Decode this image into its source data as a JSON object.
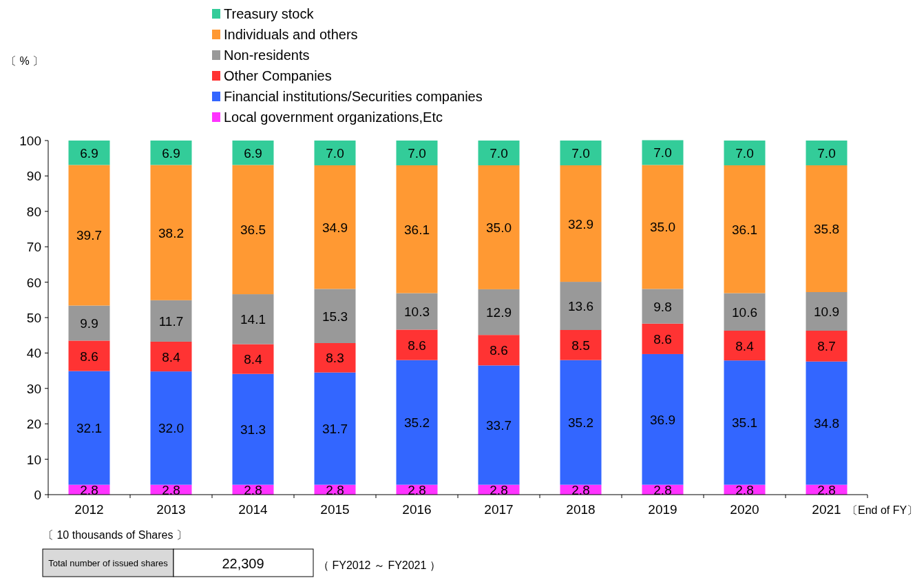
{
  "chart_data": {
    "type": "bar",
    "stacked": true,
    "legend": "top",
    "grid": false,
    "xlabel": "〔End of FY〕",
    "categories": [
      "2012",
      "2013",
      "2014",
      "2015",
      "2016",
      "2017",
      "2018",
      "2019",
      "2020",
      "2021"
    ],
    "ylim": [
      0,
      100
    ],
    "yticks": [
      0,
      10,
      20,
      30,
      40,
      50,
      60,
      70,
      80,
      90,
      100
    ],
    "series": [
      {
        "name": "Local government organizations,Etc",
        "color": "#ff33ff",
        "values": [
          2.8,
          2.8,
          2.8,
          2.8,
          2.8,
          2.8,
          2.8,
          2.8,
          2.8,
          2.8
        ],
        "value_labels": [
          "2.8",
          "2.8",
          "2.8",
          "2.8",
          "2.8",
          "2.8",
          "2.8",
          "2.8",
          "2.8",
          "2.8"
        ]
      },
      {
        "name": "Financial institutions/Securities companies",
        "color": "#3366ff",
        "values": [
          32.1,
          32.0,
          31.3,
          31.7,
          35.2,
          33.7,
          35.2,
          36.9,
          35.1,
          34.8
        ],
        "value_labels": [
          "32.1",
          "32.0",
          "31.3",
          "31.7",
          "35.2",
          "33.7",
          "35.2",
          "36.9",
          "35.1",
          "34.8"
        ]
      },
      {
        "name": "Other Companies",
        "color": "#ff3333",
        "values": [
          8.6,
          8.4,
          8.4,
          8.3,
          8.6,
          8.6,
          8.5,
          8.6,
          8.4,
          8.7
        ],
        "value_labels": [
          "8.6",
          "8.4",
          "8.4",
          "8.3",
          "8.6",
          "8.6",
          "8.5",
          "8.6",
          "8.4",
          "8.7"
        ]
      },
      {
        "name": "Non-residents",
        "color": "#999999",
        "values": [
          9.9,
          11.7,
          14.1,
          15.3,
          10.3,
          12.9,
          13.6,
          9.8,
          10.6,
          10.9
        ],
        "value_labels": [
          "9.9",
          "11.7",
          "14.1",
          "15.3",
          "10.3",
          "12.9",
          "13.6",
          "9.8",
          "10.6",
          "10.9"
        ]
      },
      {
        "name": "Individuals and others",
        "color": "#ff9933",
        "values": [
          39.7,
          38.2,
          36.5,
          34.9,
          36.1,
          35.0,
          32.9,
          35.0,
          36.1,
          35.8
        ],
        "value_labels": [
          "39.7",
          "38.2",
          "36.5",
          "34.9",
          "36.1",
          "35.0",
          "32.9",
          "35.0",
          "36.1",
          "35.8"
        ]
      },
      {
        "name": "Treasury stock",
        "color": "#33cc99",
        "values": [
          6.9,
          6.9,
          6.9,
          7.0,
          7.0,
          7.0,
          7.0,
          7.0,
          7.0,
          7.0
        ],
        "value_labels": [
          "6.9",
          "6.9",
          "6.9",
          "7.0",
          "7.0",
          "7.0",
          "7.0",
          "7.0",
          "7.0",
          "7.0"
        ]
      }
    ],
    "annotations": [
      "〔 % 〕",
      "〔 10 thousands of Shares 〕",
      "Total number of issued shares",
      "22,309",
      "（ FY2012 ～ FY2021 ）"
    ]
  }
}
